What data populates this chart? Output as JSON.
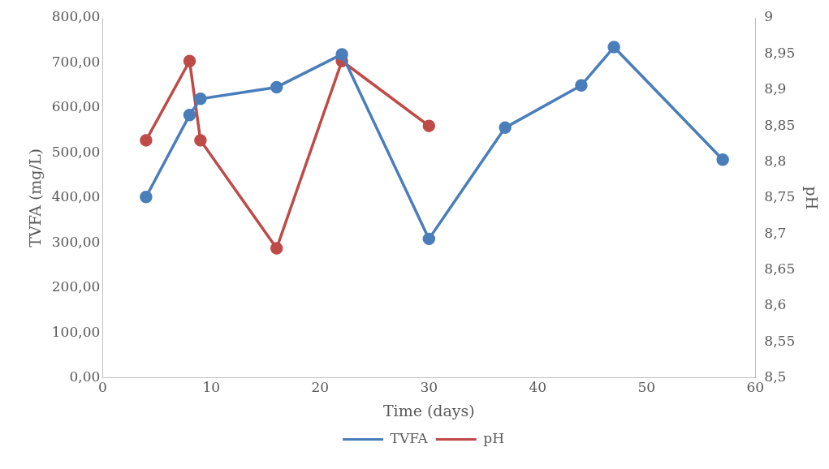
{
  "chart_data": {
    "type": "line",
    "xlabel": "Time (days)",
    "ylabel": "TVFA (mg/L)",
    "y2label": "pH",
    "series": [
      {
        "name": "TVFA",
        "color": "#4a7ebb",
        "x": [
          4,
          8,
          9,
          16,
          22,
          30,
          37,
          44,
          47,
          57
        ],
        "values": [
          402,
          584,
          620,
          646,
          719,
          309,
          556,
          650,
          735,
          485
        ]
      },
      {
        "name": "pH",
        "color": "#be4b48",
        "axis": "y2",
        "x": [
          4,
          8,
          9,
          16,
          22,
          30
        ],
        "values": [
          8.83,
          8.94,
          8.83,
          8.68,
          8.94,
          8.85
        ]
      }
    ],
    "xlim": [
      0,
      60
    ],
    "xticks": [
      0,
      10,
      20,
      30,
      40,
      50,
      60
    ],
    "ylim": [
      0,
      800
    ],
    "yticks": [
      {
        "value": 0,
        "label": "0,00"
      },
      {
        "value": 100,
        "label": "100,00"
      },
      {
        "value": 200,
        "label": "200,00"
      },
      {
        "value": 300,
        "label": "300,00"
      },
      {
        "value": 400,
        "label": "400,00"
      },
      {
        "value": 500,
        "label": "500,00"
      },
      {
        "value": 600,
        "label": "600,00"
      },
      {
        "value": 700,
        "label": "700,00"
      },
      {
        "value": 800,
        "label": "800,00"
      }
    ],
    "y2lim": [
      8.5,
      9
    ],
    "y2ticks": [
      {
        "value": 8.5,
        "label": "8,5"
      },
      {
        "value": 8.55,
        "label": "8,55"
      },
      {
        "value": 8.6,
        "label": "8,6"
      },
      {
        "value": 8.65,
        "label": "8,65"
      },
      {
        "value": 8.7,
        "label": "8,7"
      },
      {
        "value": 8.75,
        "label": "8,75"
      },
      {
        "value": 8.8,
        "label": "8,8"
      },
      {
        "value": 8.85,
        "label": "8,85"
      },
      {
        "value": 8.9,
        "label": "8,9"
      },
      {
        "value": 8.95,
        "label": "8,95"
      },
      {
        "value": 9,
        "label": "9"
      }
    ],
    "legend": "bottom",
    "marker": "circle",
    "line_style": "solid",
    "grid": false
  }
}
